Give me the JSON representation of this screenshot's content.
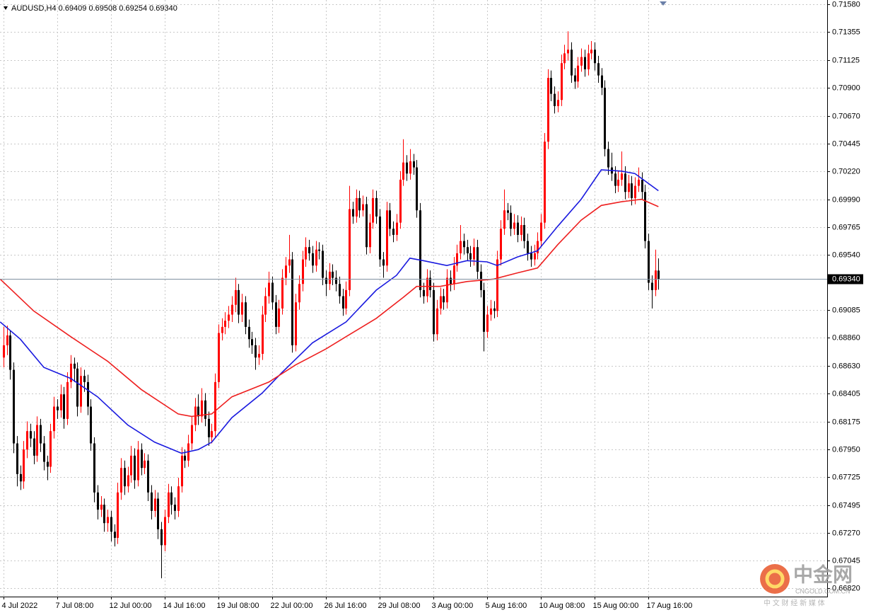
{
  "chart_data": {
    "type": "candlestick",
    "title": "AUDUSD,H4",
    "ylim": [
      0.66751,
      0.71615
    ],
    "xlim": [
      -1.05,
      245.26
    ],
    "grid": true,
    "up_color": "#ff0000",
    "down_color": "#000000",
    "yticks": [
      {
        "value": 0.7158,
        "label": "0.71580"
      },
      0.71355,
      0.71125,
      {
        "value": 0.709,
        "label": "0.70900"
      },
      {
        "value": 0.7067,
        "label": "0.70670"
      },
      0.70445,
      {
        "value": 0.7022,
        "label": "0.70220"
      },
      {
        "value": 0.6999,
        "label": "0.69990"
      },
      0.69765,
      {
        "value": 0.6954,
        "label": "0.69540"
      },
      0.69085,
      {
        "value": 0.6886,
        "label": "0.68860"
      },
      {
        "value": 0.6863,
        "label": "0.68630"
      },
      0.68405,
      0.68175,
      {
        "value": 0.6795,
        "label": "0.67950"
      },
      0.67725,
      0.67495,
      {
        "value": 0.6727,
        "label": "0.67270"
      },
      0.67045,
      {
        "value": 0.6682,
        "label": "0.66820"
      }
    ],
    "xticks": [
      {
        "value": 0,
        "label": "4 Jul 2022"
      },
      {
        "value": 16,
        "label": "7 Jul 08:00"
      },
      {
        "value": 32,
        "label": "12 Jul 00:00"
      },
      {
        "value": 48,
        "label": "14 Jul 16:00"
      },
      {
        "value": 64,
        "label": "19 Jul 08:00"
      },
      {
        "value": 80,
        "label": "22 Jul 00:00"
      },
      {
        "value": 96,
        "label": "26 Jul 16:00"
      },
      {
        "value": 112,
        "label": "29 Jul 08:00"
      },
      {
        "value": 128,
        "label": "3 Aug 00:00"
      },
      {
        "value": 144,
        "label": "5 Aug 16:00"
      },
      {
        "value": 160,
        "label": "10 Aug 08:00"
      },
      {
        "value": 176,
        "label": "15 Aug 00:00"
      },
      {
        "value": 192,
        "label": "17 Aug 16:00"
      }
    ],
    "price_line": {
      "value": 0.6934,
      "label": "0.69340"
    },
    "candles": [
      [
        0.687,
        0.6895,
        0.6862,
        0.688
      ],
      [
        0.688,
        0.6896,
        0.6872,
        0.6888
      ],
      [
        0.6888,
        0.6892,
        0.6852,
        0.686
      ],
      [
        0.686,
        0.6866,
        0.6792,
        0.68
      ],
      [
        0.68,
        0.6806,
        0.6765,
        0.6775
      ],
      [
        0.6775,
        0.6782,
        0.6762,
        0.6769
      ],
      [
        0.6769,
        0.6802,
        0.6763,
        0.6795
      ],
      [
        0.6795,
        0.6818,
        0.6788,
        0.681
      ],
      [
        0.681,
        0.6816,
        0.6797,
        0.6804
      ],
      [
        0.6804,
        0.681,
        0.6783,
        0.679
      ],
      [
        0.679,
        0.6822,
        0.6785,
        0.6815
      ],
      [
        0.6815,
        0.682,
        0.6793,
        0.68
      ],
      [
        0.68,
        0.6806,
        0.6778,
        0.6785
      ],
      [
        0.6785,
        0.679,
        0.677,
        0.6781
      ],
      [
        0.6781,
        0.6816,
        0.6776,
        0.681
      ],
      [
        0.681,
        0.6838,
        0.6804,
        0.683
      ],
      [
        0.683,
        0.6836,
        0.682,
        0.6827
      ],
      [
        0.6827,
        0.6848,
        0.6821,
        0.684
      ],
      [
        0.684,
        0.6846,
        0.6812,
        0.682
      ],
      [
        0.682,
        0.6858,
        0.6815,
        0.685
      ],
      [
        0.685,
        0.6872,
        0.6845,
        0.6865
      ],
      [
        0.6865,
        0.687,
        0.685,
        0.6861
      ],
      [
        0.6861,
        0.6866,
        0.6822,
        0.683
      ],
      [
        0.683,
        0.6862,
        0.6825,
        0.6855
      ],
      [
        0.6855,
        0.686,
        0.6842,
        0.685
      ],
      [
        0.685,
        0.6856,
        0.6823,
        0.683
      ],
      [
        0.683,
        0.6836,
        0.6794,
        0.68
      ],
      [
        0.68,
        0.6805,
        0.6752,
        0.676
      ],
      [
        0.676,
        0.6766,
        0.6738,
        0.6746
      ],
      [
        0.6746,
        0.6757,
        0.674,
        0.675
      ],
      [
        0.675,
        0.6755,
        0.6728,
        0.6735
      ],
      [
        0.6735,
        0.6746,
        0.6728,
        0.674
      ],
      [
        0.674,
        0.6745,
        0.672,
        0.6728
      ],
      [
        0.6728,
        0.6734,
        0.6716,
        0.6723
      ],
      [
        0.6723,
        0.6768,
        0.6718,
        0.676
      ],
      [
        0.676,
        0.6788,
        0.6754,
        0.678
      ],
      [
        0.678,
        0.6786,
        0.6758,
        0.6765
      ],
      [
        0.6765,
        0.6781,
        0.676,
        0.6774
      ],
      [
        0.6774,
        0.6798,
        0.6768,
        0.679
      ],
      [
        0.679,
        0.6796,
        0.6763,
        0.677
      ],
      [
        0.677,
        0.6802,
        0.6765,
        0.6795
      ],
      [
        0.6795,
        0.68,
        0.6774,
        0.678
      ],
      [
        0.678,
        0.6792,
        0.6775,
        0.6786
      ],
      [
        0.6786,
        0.6791,
        0.6753,
        0.676
      ],
      [
        0.676,
        0.6766,
        0.6738,
        0.6745
      ],
      [
        0.6745,
        0.6762,
        0.674,
        0.6755
      ],
      [
        0.6755,
        0.676,
        0.6722,
        0.673
      ],
      [
        0.673,
        0.6736,
        0.669,
        0.6717
      ],
      [
        0.6717,
        0.6746,
        0.6712,
        0.674
      ],
      [
        0.674,
        0.6767,
        0.6735,
        0.676
      ],
      [
        0.676,
        0.6765,
        0.6742,
        0.675
      ],
      [
        0.675,
        0.6756,
        0.6738,
        0.6745
      ],
      [
        0.6745,
        0.6772,
        0.674,
        0.6765
      ],
      [
        0.6765,
        0.6797,
        0.676,
        0.679
      ],
      [
        0.679,
        0.6795,
        0.678,
        0.6786
      ],
      [
        0.6786,
        0.6807,
        0.6781,
        0.68
      ],
      [
        0.68,
        0.6822,
        0.6795,
        0.6815
      ],
      [
        0.6815,
        0.6837,
        0.681,
        0.683
      ],
      [
        0.683,
        0.684,
        0.6815,
        0.6822
      ],
      [
        0.6822,
        0.6845,
        0.6817,
        0.6835
      ],
      [
        0.6835,
        0.6841,
        0.6814,
        0.682
      ],
      [
        0.682,
        0.6826,
        0.6798,
        0.6805
      ],
      [
        0.6805,
        0.6816,
        0.68,
        0.681
      ],
      [
        0.681,
        0.6857,
        0.6805,
        0.685
      ],
      [
        0.685,
        0.6897,
        0.6845,
        0.689
      ],
      [
        0.689,
        0.6902,
        0.6884,
        0.6895
      ],
      [
        0.6895,
        0.6907,
        0.6889,
        0.69
      ],
      [
        0.69,
        0.6912,
        0.6894,
        0.6905
      ],
      [
        0.6905,
        0.692,
        0.6899,
        0.6913
      ],
      [
        0.6913,
        0.6935,
        0.6907,
        0.6925
      ],
      [
        0.6925,
        0.693,
        0.6898,
        0.6905
      ],
      [
        0.6905,
        0.6922,
        0.6899,
        0.6915
      ],
      [
        0.6915,
        0.692,
        0.6889,
        0.6895
      ],
      [
        0.6895,
        0.6901,
        0.6878,
        0.6885
      ],
      [
        0.6885,
        0.6891,
        0.6873,
        0.688
      ],
      [
        0.688,
        0.6886,
        0.686,
        0.687
      ],
      [
        0.687,
        0.688,
        0.6864,
        0.6873
      ],
      [
        0.6873,
        0.6912,
        0.6868,
        0.6905
      ],
      [
        0.6905,
        0.6927,
        0.6899,
        0.692
      ],
      [
        0.692,
        0.694,
        0.6914,
        0.6931
      ],
      [
        0.6931,
        0.6936,
        0.6909,
        0.6915
      ],
      [
        0.6915,
        0.6921,
        0.6889,
        0.6895
      ],
      [
        0.6895,
        0.6917,
        0.689,
        0.691
      ],
      [
        0.691,
        0.6942,
        0.6905,
        0.6935
      ],
      [
        0.6935,
        0.6952,
        0.6929,
        0.6945
      ],
      [
        0.6945,
        0.697,
        0.6939,
        0.695
      ],
      [
        0.695,
        0.6956,
        0.6874,
        0.688
      ],
      [
        0.688,
        0.6922,
        0.6875,
        0.6915
      ],
      [
        0.6915,
        0.6937,
        0.6909,
        0.693
      ],
      [
        0.693,
        0.6957,
        0.6924,
        0.695
      ],
      [
        0.695,
        0.6968,
        0.6944,
        0.696
      ],
      [
        0.696,
        0.6966,
        0.6949,
        0.6955
      ],
      [
        0.6955,
        0.6961,
        0.6939,
        0.6945
      ],
      [
        0.6945,
        0.6965,
        0.694,
        0.6958
      ],
      [
        0.6958,
        0.6964,
        0.695,
        0.6957
      ],
      [
        0.6957,
        0.6962,
        0.6929,
        0.6935
      ],
      [
        0.6935,
        0.6941,
        0.692,
        0.693
      ],
      [
        0.693,
        0.6947,
        0.6925,
        0.694
      ],
      [
        0.694,
        0.6946,
        0.6929,
        0.6935
      ],
      [
        0.6935,
        0.6941,
        0.6924,
        0.693
      ],
      [
        0.693,
        0.6936,
        0.6914,
        0.692
      ],
      [
        0.692,
        0.6926,
        0.6904,
        0.691
      ],
      [
        0.691,
        0.6932,
        0.6905,
        0.6925
      ],
      [
        0.6925,
        0.701,
        0.692,
        0.6991
      ],
      [
        0.6991,
        0.6997,
        0.6979,
        0.6985
      ],
      [
        0.6985,
        0.7007,
        0.698,
        0.7
      ],
      [
        0.7,
        0.7006,
        0.6984,
        0.699
      ],
      [
        0.699,
        0.7002,
        0.6985,
        0.6995
      ],
      [
        0.6995,
        0.7001,
        0.6954,
        0.696
      ],
      [
        0.696,
        0.6987,
        0.6955,
        0.698
      ],
      [
        0.698,
        0.7007,
        0.6975,
        0.7
      ],
      [
        0.7,
        0.7006,
        0.6979,
        0.6985
      ],
      [
        0.6985,
        0.6991,
        0.6944,
        0.695
      ],
      [
        0.695,
        0.6956,
        0.6935,
        0.6945
      ],
      [
        0.6945,
        0.6997,
        0.694,
        0.699
      ],
      [
        0.699,
        0.6996,
        0.6969,
        0.6975
      ],
      [
        0.6975,
        0.6981,
        0.6964,
        0.697
      ],
      [
        0.697,
        0.6987,
        0.6965,
        0.698
      ],
      [
        0.698,
        0.7022,
        0.6975,
        0.7015
      ],
      [
        0.7015,
        0.7048,
        0.701,
        0.7029
      ],
      [
        0.7029,
        0.7035,
        0.7014,
        0.702
      ],
      [
        0.702,
        0.704,
        0.7015,
        0.703
      ],
      [
        0.703,
        0.7036,
        0.7019,
        0.7025
      ],
      [
        0.7025,
        0.7031,
        0.6984,
        0.699
      ],
      [
        0.699,
        0.6996,
        0.6919,
        0.6925
      ],
      [
        0.6925,
        0.6931,
        0.6914,
        0.692
      ],
      [
        0.692,
        0.6942,
        0.6915,
        0.6935
      ],
      [
        0.6935,
        0.6941,
        0.6919,
        0.6925
      ],
      [
        0.6925,
        0.6931,
        0.6883,
        0.6889
      ],
      [
        0.6889,
        0.6917,
        0.6884,
        0.691
      ],
      [
        0.691,
        0.6927,
        0.6905,
        0.692
      ],
      [
        0.692,
        0.6926,
        0.6909,
        0.6915
      ],
      [
        0.6915,
        0.6942,
        0.691,
        0.6935
      ],
      [
        0.6935,
        0.6941,
        0.6924,
        0.693
      ],
      [
        0.693,
        0.6952,
        0.6925,
        0.6945
      ],
      [
        0.6945,
        0.6962,
        0.694,
        0.6955
      ],
      [
        0.6955,
        0.6978,
        0.695,
        0.6965
      ],
      [
        0.6965,
        0.6971,
        0.6954,
        0.696
      ],
      [
        0.696,
        0.6966,
        0.6949,
        0.6955
      ],
      [
        0.6955,
        0.6961,
        0.6944,
        0.695
      ],
      [
        0.695,
        0.6967,
        0.6945,
        0.696
      ],
      [
        0.696,
        0.6966,
        0.6934,
        0.694
      ],
      [
        0.694,
        0.6946,
        0.6919,
        0.6925
      ],
      [
        0.6925,
        0.6931,
        0.6875,
        0.6891
      ],
      [
        0.6891,
        0.6912,
        0.6886,
        0.6905
      ],
      [
        0.6905,
        0.6917,
        0.69,
        0.691
      ],
      [
        0.691,
        0.6916,
        0.6902,
        0.6908
      ],
      [
        0.6908,
        0.6957,
        0.6903,
        0.695
      ],
      [
        0.695,
        0.6982,
        0.6945,
        0.6975
      ],
      [
        0.6975,
        0.7007,
        0.697,
        0.699
      ],
      [
        0.699,
        0.6996,
        0.6982,
        0.6988
      ],
      [
        0.6988,
        0.6994,
        0.6969,
        0.6975
      ],
      [
        0.6975,
        0.6987,
        0.697,
        0.698
      ],
      [
        0.698,
        0.6986,
        0.6964,
        0.697
      ],
      [
        0.697,
        0.6985,
        0.6965,
        0.6978
      ],
      [
        0.6978,
        0.6984,
        0.6959,
        0.6965
      ],
      [
        0.6965,
        0.6971,
        0.6949,
        0.6955
      ],
      [
        0.6955,
        0.6961,
        0.6944,
        0.695
      ],
      [
        0.695,
        0.6962,
        0.6945,
        0.6955
      ],
      [
        0.6955,
        0.6972,
        0.695,
        0.6965
      ],
      [
        0.6965,
        0.6987,
        0.696,
        0.698
      ],
      [
        0.698,
        0.7053,
        0.6975,
        0.7046
      ],
      [
        0.7046,
        0.7105,
        0.704,
        0.7098
      ],
      [
        0.7098,
        0.7104,
        0.7079,
        0.7085
      ],
      [
        0.7085,
        0.7091,
        0.7069,
        0.7075
      ],
      [
        0.7075,
        0.7087,
        0.707,
        0.708
      ],
      [
        0.708,
        0.7117,
        0.7075,
        0.711
      ],
      [
        0.711,
        0.7125,
        0.7105,
        0.7118
      ],
      [
        0.7118,
        0.7136,
        0.7112,
        0.7121
      ],
      [
        0.7121,
        0.7127,
        0.7094,
        0.71
      ],
      [
        0.71,
        0.7106,
        0.7089,
        0.7095
      ],
      [
        0.7095,
        0.7115,
        0.709,
        0.7108
      ],
      [
        0.7108,
        0.7122,
        0.7103,
        0.7115
      ],
      [
        0.7115,
        0.7121,
        0.7099,
        0.7105
      ],
      [
        0.7105,
        0.7125,
        0.71,
        0.7118
      ],
      [
        0.7118,
        0.7128,
        0.7113,
        0.7121
      ],
      [
        0.7121,
        0.7127,
        0.7104,
        0.711
      ],
      [
        0.711,
        0.7116,
        0.7094,
        0.71
      ],
      [
        0.71,
        0.7106,
        0.7084,
        0.709
      ],
      [
        0.709,
        0.7096,
        0.7034,
        0.704
      ],
      [
        0.704,
        0.7046,
        0.7019,
        0.7025
      ],
      [
        0.7025,
        0.7037,
        0.7014,
        0.702
      ],
      [
        0.702,
        0.7026,
        0.7004,
        0.701
      ],
      [
        0.701,
        0.7022,
        0.7005,
        0.7015
      ],
      [
        0.7015,
        0.7038,
        0.701,
        0.702
      ],
      [
        0.702,
        0.7026,
        0.6999,
        0.7005
      ],
      [
        0.7005,
        0.7019,
        0.7,
        0.7012
      ],
      [
        0.7012,
        0.7018,
        0.6994,
        0.7
      ],
      [
        0.7,
        0.7017,
        0.6995,
        0.701
      ],
      [
        0.701,
        0.7025,
        0.7005,
        0.7015
      ],
      [
        0.7015,
        0.7021,
        0.6999,
        0.7005
      ],
      [
        0.7005,
        0.7011,
        0.6959,
        0.6965
      ],
      [
        0.6965,
        0.6971,
        0.6925,
        0.6931
      ],
      [
        0.6931,
        0.6937,
        0.691,
        0.6925
      ],
      [
        0.6925,
        0.6958,
        0.692,
        0.6941
      ],
      [
        0.69409,
        0.69508,
        0.69254,
        0.6934
      ]
    ],
    "overlays": [
      {
        "color": "#1a1adf",
        "x": [
          -1,
          5,
          12,
          20,
          28,
          37,
          45,
          53,
          58,
          62,
          68,
          77,
          83,
          92,
          102,
          111,
          117,
          121,
          125,
          132,
          138,
          144,
          147,
          153,
          159,
          165,
          172,
          178,
          184,
          188,
          195
        ],
        "values": [
          0.6899,
          0.6885,
          0.6862,
          0.6853,
          0.6838,
          0.6815,
          0.6801,
          0.6792,
          0.6795,
          0.6801,
          0.6821,
          0.6841,
          0.6858,
          0.6882,
          0.6899,
          0.6925,
          0.6937,
          0.6951,
          0.6949,
          0.6945,
          0.6949,
          0.6948,
          0.6945,
          0.6952,
          0.6957,
          0.6977,
          0.6999,
          0.7023,
          0.7022,
          0.702,
          0.7006
        ]
      },
      {
        "color": "#ee2020",
        "x": [
          -1,
          9,
          20,
          31,
          41,
          52,
          56,
          62,
          68,
          79,
          87,
          96,
          102,
          111,
          119,
          123,
          130,
          138,
          146,
          153,
          159,
          165,
          172,
          178,
          184,
          190,
          195
        ],
        "values": [
          0.6934,
          0.6908,
          0.6887,
          0.6867,
          0.6844,
          0.6824,
          0.6822,
          0.6824,
          0.6838,
          0.685,
          0.6864,
          0.6877,
          0.6887,
          0.6902,
          0.6919,
          0.6928,
          0.6928,
          0.6932,
          0.6934,
          0.6939,
          0.6943,
          0.6962,
          0.6982,
          0.6994,
          0.6997,
          0.6999,
          0.6993
        ]
      }
    ],
    "watermark": {
      "name": "中金网",
      "site": "CNGOLD.COM.CN",
      "slogan": "中 文 财 经 新 媒 体"
    }
  }
}
